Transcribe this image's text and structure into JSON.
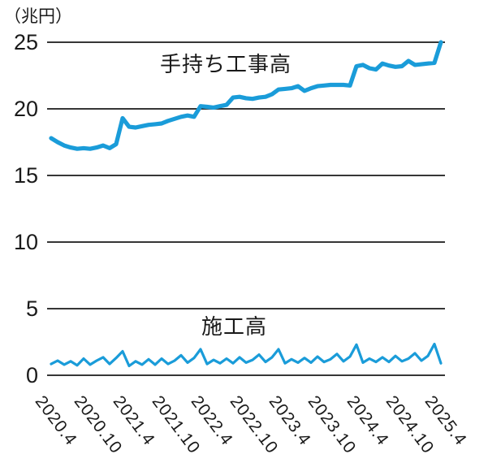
{
  "colors": {
    "line": "#1a9cd9",
    "axis": "#1a1a1a",
    "text": "#1a1a1a",
    "background": "#ffffff"
  },
  "chart_data": {
    "type": "line",
    "unit_label": "（兆円）",
    "x_start": "2020.4",
    "x_end": "2025.4",
    "x_frequency": "monthly",
    "x_tick_labels": [
      "2020.4",
      "2020.10",
      "2021.4",
      "2021.10",
      "2022.4",
      "2022.10",
      "2023.4",
      "2023.10",
      "2024.4",
      "2024.10",
      "2025.4"
    ],
    "x_tick_month_indices": [
      0,
      6,
      12,
      18,
      24,
      30,
      36,
      42,
      48,
      54,
      60
    ],
    "ylim": [
      0,
      25
    ],
    "y_ticks": [
      0,
      5,
      10,
      15,
      20,
      25
    ],
    "grid": "horizontal-only",
    "legend": "inline-labels",
    "series": [
      {
        "name": "手持ち工事高",
        "values": [
          17.8,
          17.5,
          17.25,
          17.1,
          17.0,
          17.05,
          17.0,
          17.1,
          17.25,
          17.05,
          17.35,
          19.3,
          18.65,
          18.6,
          18.7,
          18.8,
          18.85,
          18.9,
          19.1,
          19.25,
          19.4,
          19.5,
          19.4,
          20.2,
          20.15,
          20.1,
          20.2,
          20.3,
          20.85,
          20.9,
          20.8,
          20.75,
          20.85,
          20.9,
          21.1,
          21.45,
          21.5,
          21.55,
          21.7,
          21.35,
          21.55,
          21.7,
          21.75,
          21.8,
          21.8,
          21.8,
          21.75,
          23.2,
          23.3,
          23.05,
          22.95,
          23.4,
          23.25,
          23.15,
          23.2,
          23.6,
          23.3,
          23.35,
          23.4,
          23.45,
          25.0
        ]
      },
      {
        "name": "施工高",
        "values": [
          0.85,
          1.1,
          0.8,
          1.05,
          0.75,
          1.25,
          0.8,
          1.1,
          1.35,
          0.85,
          1.3,
          1.8,
          0.7,
          1.05,
          0.8,
          1.2,
          0.8,
          1.25,
          0.85,
          1.1,
          1.5,
          0.95,
          1.3,
          1.95,
          0.85,
          1.15,
          0.9,
          1.25,
          0.9,
          1.35,
          0.95,
          1.15,
          1.55,
          1.0,
          1.35,
          1.95,
          0.9,
          1.2,
          0.95,
          1.3,
          0.95,
          1.4,
          1.0,
          1.2,
          1.6,
          1.05,
          1.4,
          2.3,
          0.95,
          1.25,
          1.0,
          1.35,
          1.0,
          1.45,
          1.05,
          1.25,
          1.65,
          1.1,
          1.45,
          2.35,
          0.9
        ]
      }
    ]
  }
}
